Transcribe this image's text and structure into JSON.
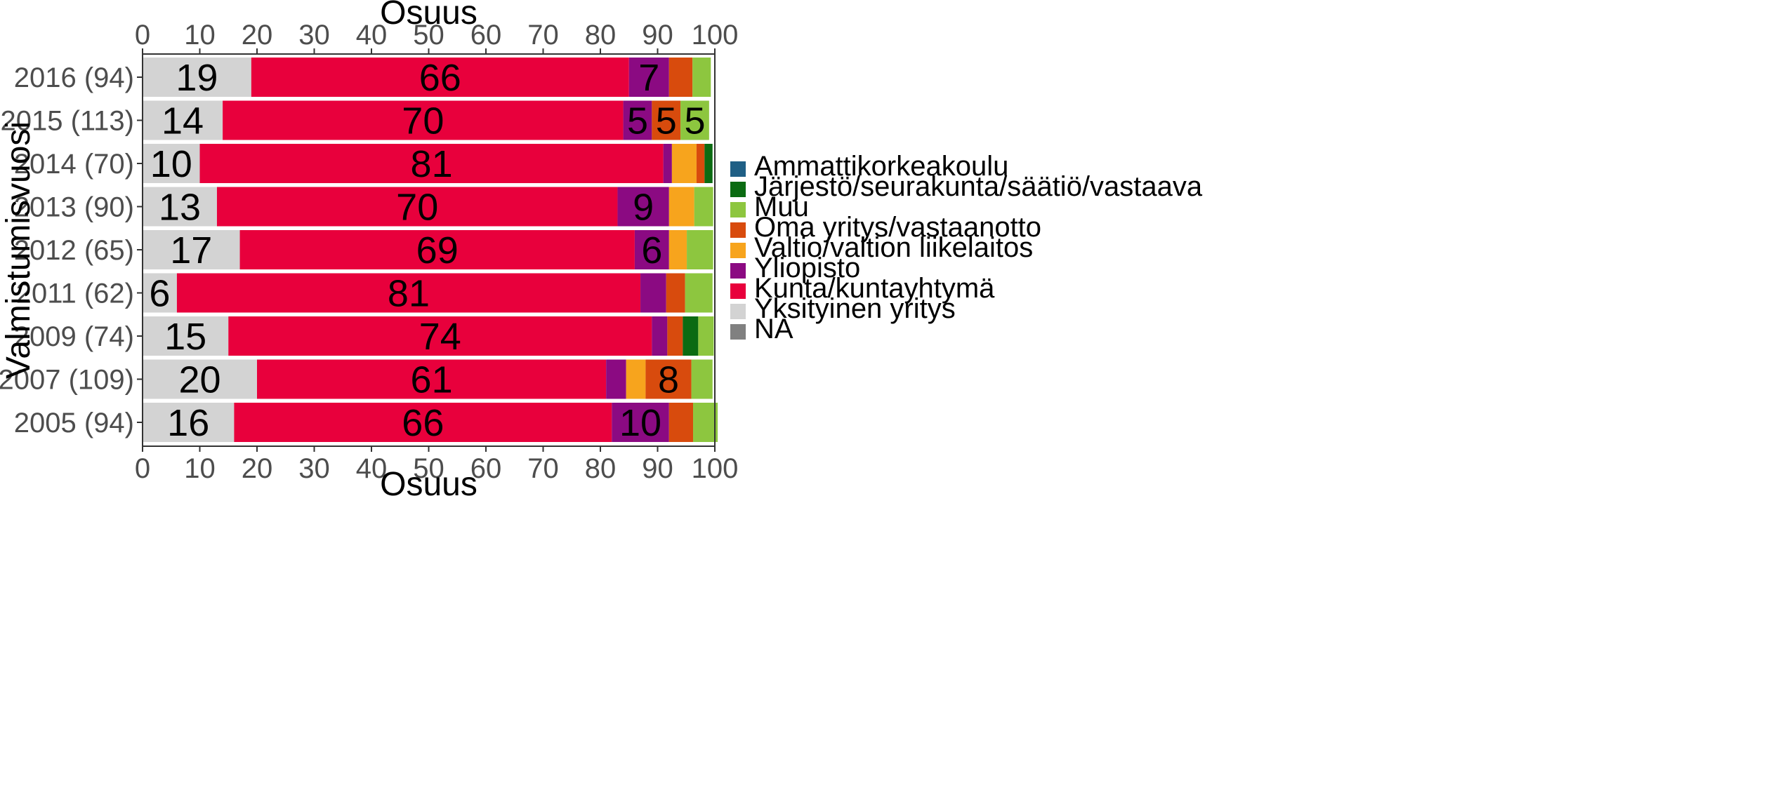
{
  "chart_data": {
    "type": "bar",
    "orientation": "horizontal",
    "stacked": true,
    "xlabel_top": "Osuus",
    "xlabel": "Osuus",
    "ylabel": "Valmistumisvuosi",
    "xlim": [
      0,
      100
    ],
    "xticks": [
      0,
      10,
      20,
      30,
      40,
      50,
      60,
      70,
      80,
      90,
      100
    ],
    "grid": false,
    "legend_position": "right",
    "categories": [
      "2016 (94)",
      "2015 (113)",
      "2014 (70)",
      "2013 (90)",
      "2012 (65)",
      "2011 (62)",
      "2009 (74)",
      "2007 (109)",
      "2005 (94)"
    ],
    "legend": [
      {
        "name": "Ammattikorkeakoulu",
        "color": "#1f5f85"
      },
      {
        "name": "Järjestö/seurakunta/säätiö/vastaava",
        "color": "#0b6b12"
      },
      {
        "name": "Muu",
        "color": "#8dc63f"
      },
      {
        "name": "Oma yritys/vastaanotto",
        "color": "#d84b0d"
      },
      {
        "name": "Valtio/valtion liikelaitos",
        "color": "#f7a41d"
      },
      {
        "name": "Yliopisto",
        "color": "#8b0a82"
      },
      {
        "name": "Kunta/kuntayhtymä",
        "color": "#e8003c"
      },
      {
        "name": "Yksityinen yritys",
        "color": "#d3d3d3"
      },
      {
        "name": "NA",
        "color": "#808080"
      }
    ],
    "stack_order": [
      "Yksityinen yritys",
      "Kunta/kuntayhtymä",
      "Yliopisto",
      "Valtio/valtion liikelaitos",
      "Oma yritys/vastaanotto",
      "Järjestö/seurakunta/säätiö/vastaava",
      "Muu"
    ],
    "series": [
      {
        "name": "Yksityinen yritys",
        "values": [
          19,
          14,
          10,
          13,
          17,
          6,
          15,
          20,
          16
        ],
        "labels": [
          "19",
          "14",
          "10",
          "13",
          "17",
          "6",
          "15",
          "20",
          "16"
        ]
      },
      {
        "name": "Kunta/kuntayhtymä",
        "values": [
          66,
          70,
          81,
          70,
          69,
          81,
          74,
          61,
          66
        ],
        "labels": [
          "66",
          "70",
          "81",
          "70",
          "69",
          "81",
          "74",
          "61",
          "66"
        ]
      },
      {
        "name": "Yliopisto",
        "values": [
          7,
          5,
          1.5,
          9,
          6,
          4.5,
          2.7,
          3.5,
          10
        ],
        "labels": [
          "7",
          "5",
          "",
          "9",
          "6",
          "",
          "",
          "",
          "10"
        ]
      },
      {
        "name": "Valtio/valtion liikelaitos",
        "values": [
          0,
          0,
          4.3,
          4.4,
          3.1,
          0,
          0,
          3.4,
          0
        ],
        "labels": [
          "",
          "",
          "",
          "",
          "",
          "",
          "",
          "",
          ""
        ]
      },
      {
        "name": "Oma yritys/vastaanotto",
        "values": [
          4.1,
          5,
          1.4,
          0,
          0,
          3.3,
          2.7,
          8,
          4.2
        ],
        "labels": [
          "",
          "5",
          "",
          "",
          "",
          "",
          "",
          "8",
          ""
        ]
      },
      {
        "name": "Järjestö/seurakunta/säätiö/vastaava",
        "values": [
          0,
          0,
          1.4,
          0,
          0,
          0,
          2.7,
          0,
          0
        ],
        "labels": [
          "",
          "",
          "",
          "",
          "",
          "",
          "",
          "",
          ""
        ]
      },
      {
        "name": "Muu",
        "values": [
          3.2,
          5,
          0,
          3.3,
          4.6,
          4.8,
          2.7,
          3.7,
          4.3
        ],
        "labels": [
          "",
          "5",
          "",
          "",
          "",
          "",
          "",
          "",
          ""
        ]
      }
    ]
  }
}
